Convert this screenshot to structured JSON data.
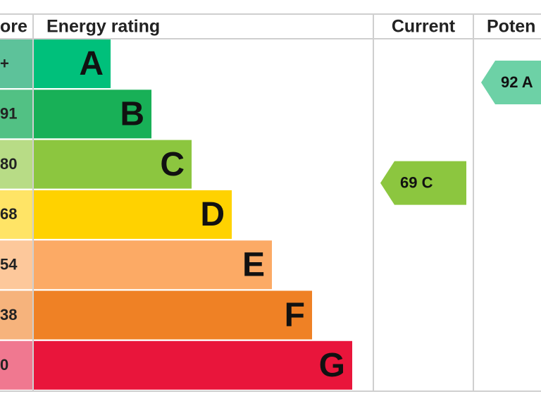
{
  "chart_data": {
    "type": "epc",
    "score_header": "ore",
    "rating_header": "Energy rating",
    "current_header": "Current",
    "potential_header": "Poten",
    "categories": [
      "A",
      "B",
      "C",
      "D",
      "E",
      "F",
      "G"
    ],
    "score_labels": [
      "+",
      "91",
      "80",
      "68",
      "54",
      "38",
      "0"
    ],
    "colors": [
      "#00c07b",
      "#18b057",
      "#8cc63f",
      "#ffd200",
      "#fcaa65",
      "#ef8125",
      "#e9153b"
    ],
    "score_colors": [
      "#5dc29a",
      "#52c184",
      "#b8dc86",
      "#ffe466",
      "#fdc89b",
      "#f6b37c",
      "#f07890"
    ],
    "current": {
      "value": 69,
      "label": "69 C",
      "color": "#8cc63f"
    },
    "potential": {
      "value": 92,
      "label": "92 A",
      "color": "#6dd1a6"
    }
  }
}
